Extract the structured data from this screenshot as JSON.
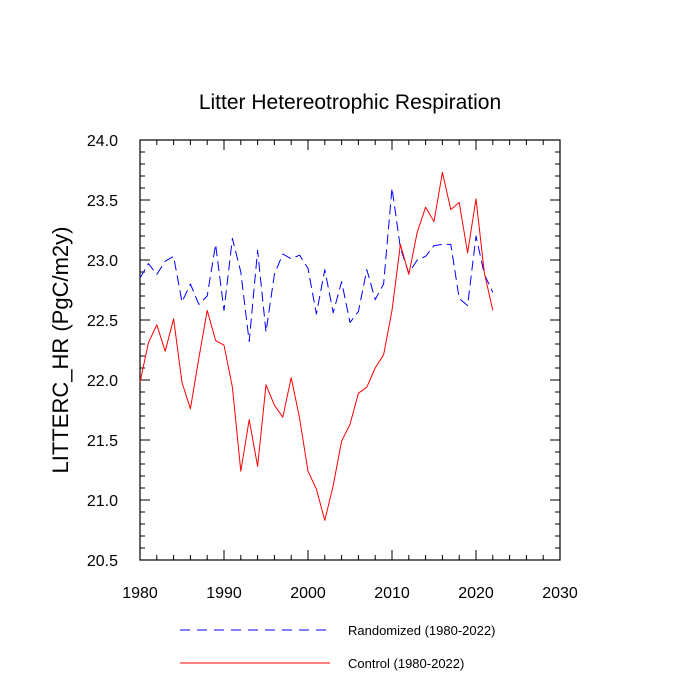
{
  "chart_data": {
    "type": "line",
    "title": "Litter Hetereotrophic Respiration",
    "xlabel": "",
    "ylabel": "LITTERC_HR  (PgC/m2y)",
    "xlim": [
      1980,
      2030
    ],
    "ylim": [
      20.5,
      24.0
    ],
    "xticks": [
      1980,
      1990,
      2000,
      2010,
      2020,
      2030
    ],
    "xtick_labels": [
      "1980",
      "1990",
      "2000",
      "2010",
      "2020",
      "2030"
    ],
    "yticks": [
      20.5,
      21.0,
      21.5,
      22.0,
      22.5,
      23.0,
      23.5,
      24.0
    ],
    "ytick_labels": [
      "20.5",
      "21.0",
      "21.5",
      "22.0",
      "22.5",
      "23.0",
      "23.5",
      "24.0"
    ],
    "legend_position": "bottom",
    "x": [
      1980,
      1981,
      1982,
      1983,
      1984,
      1985,
      1986,
      1987,
      1988,
      1989,
      1990,
      1991,
      1992,
      1993,
      1994,
      1995,
      1996,
      1997,
      1998,
      1999,
      2000,
      2001,
      2002,
      2003,
      2004,
      2005,
      2006,
      2007,
      2008,
      2009,
      2010,
      2011,
      2012,
      2013,
      2014,
      2015,
      2016,
      2017,
      2018,
      2019,
      2020,
      2021,
      2022
    ],
    "series": [
      {
        "name": "Randomized (1980-2022)",
        "color": "#0000ff",
        "dash": "dashed",
        "values": [
          22.85,
          22.97,
          22.88,
          22.99,
          23.03,
          22.65,
          22.8,
          22.63,
          22.7,
          23.13,
          22.58,
          23.18,
          22.9,
          22.32,
          23.08,
          22.4,
          22.88,
          23.05,
          23.01,
          23.04,
          22.93,
          22.55,
          22.92,
          22.56,
          22.82,
          22.48,
          22.57,
          22.92,
          22.67,
          22.8,
          23.6,
          23.1,
          22.89,
          23.0,
          23.03,
          23.12,
          23.13,
          23.13,
          22.68,
          22.62,
          23.2,
          22.88,
          22.73
        ]
      },
      {
        "name": "Control (1980-2022)",
        "color": "#ff0000",
        "dash": "solid",
        "values": [
          21.98,
          22.31,
          22.46,
          22.24,
          22.51,
          21.98,
          21.76,
          22.18,
          22.58,
          22.33,
          22.29,
          21.94,
          21.24,
          21.67,
          21.28,
          21.96,
          21.79,
          21.69,
          22.02,
          21.68,
          21.24,
          21.09,
          20.83,
          21.12,
          21.49,
          21.63,
          21.89,
          21.94,
          22.1,
          22.21,
          22.58,
          23.13,
          22.88,
          23.23,
          23.44,
          23.32,
          23.73,
          23.42,
          23.48,
          23.06,
          23.51,
          22.89,
          22.58
        ]
      }
    ]
  }
}
